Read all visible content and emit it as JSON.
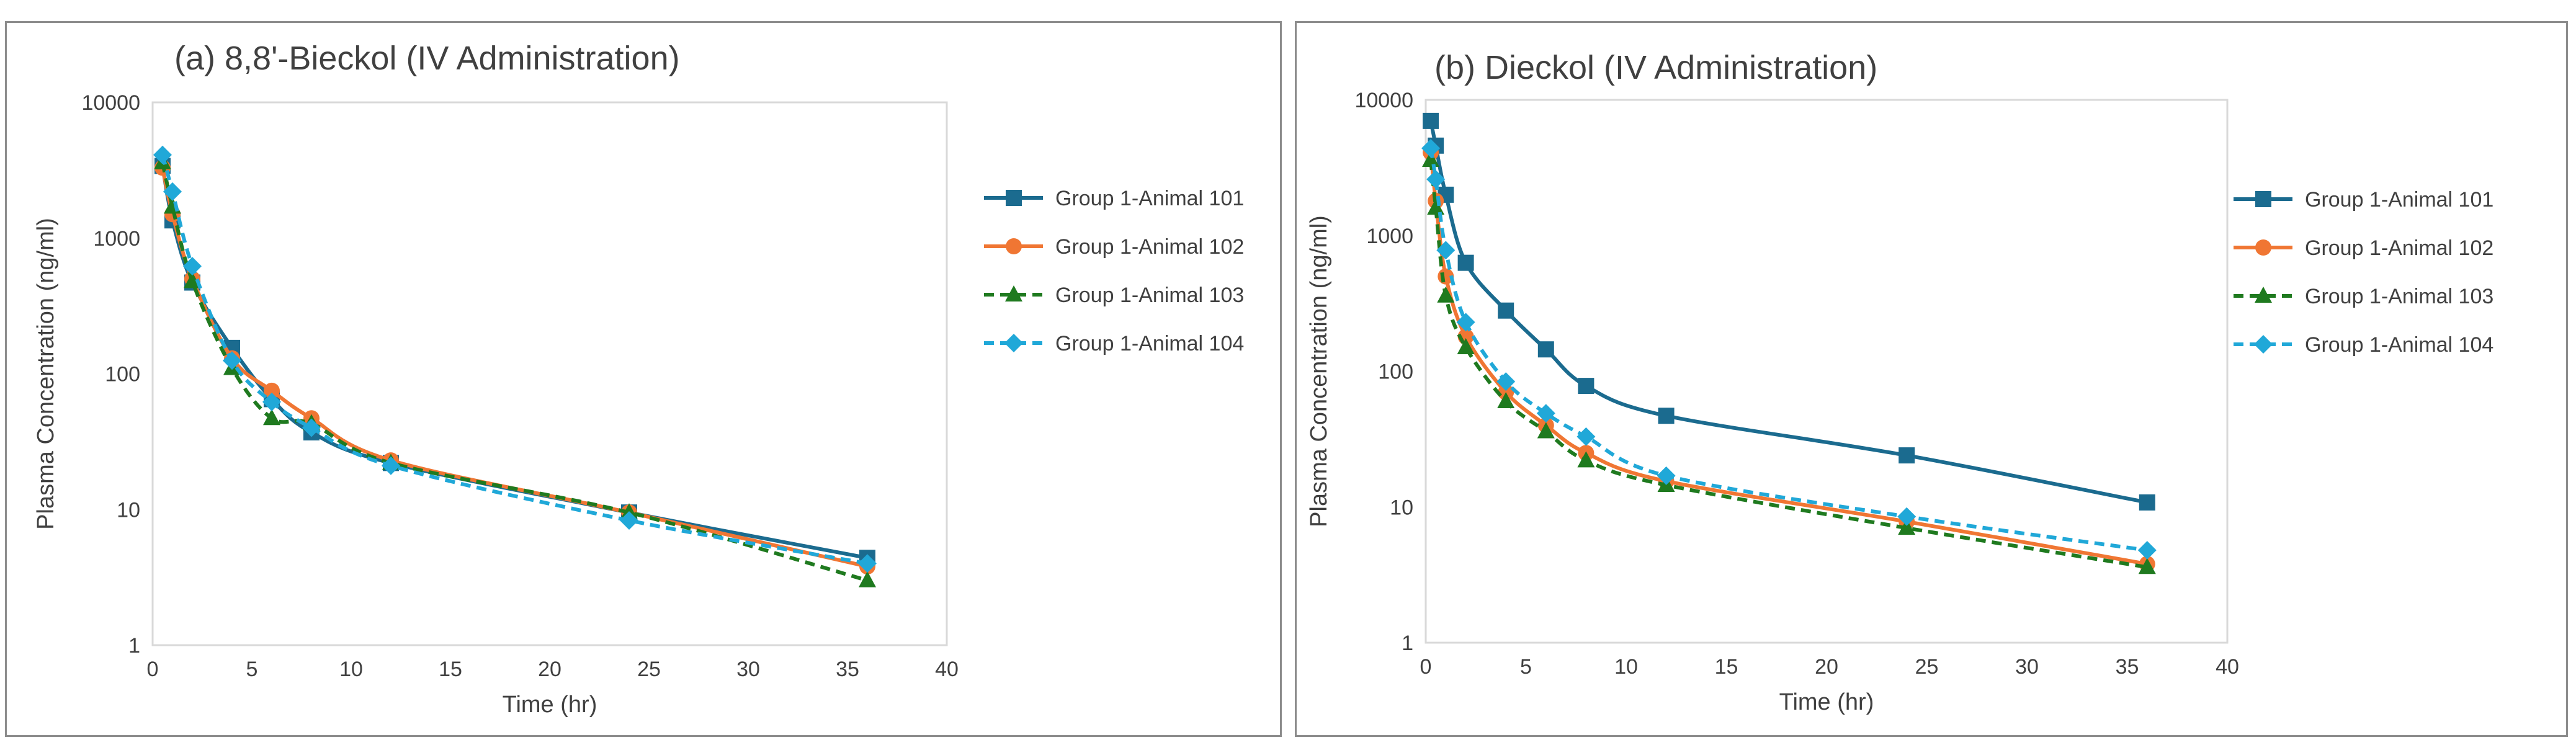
{
  "chart_data": [
    {
      "type": "line",
      "title": "(a) 8,8'-Bieckol (IV Administration)",
      "xlabel": "Time (hr)",
      "ylabel": "Plasma Concentration (ng/ml)",
      "xlim": [
        0,
        40
      ],
      "ylim": [
        1,
        10000
      ],
      "yscale": "log",
      "xticks": [
        "0",
        "5",
        "10",
        "15",
        "20",
        "25",
        "30",
        "35",
        "40"
      ],
      "yticks": [
        "1",
        "10",
        "100",
        "1000",
        "10000"
      ],
      "x": [
        0.5,
        1,
        2,
        4,
        6,
        8,
        12,
        24,
        36
      ],
      "legend_position": "right",
      "series": [
        {
          "name": "Group 1-Animal 101",
          "color": "#1b6b8f",
          "marker": "square",
          "dash": "solid",
          "values": [
            3400,
            1350,
            470,
            155,
            65,
            37,
            22,
            9.5,
            4.4
          ]
        },
        {
          "name": "Group 1-Animal 102",
          "color": "#f07633",
          "marker": "circle",
          "dash": "solid",
          "values": [
            3300,
            1500,
            500,
            130,
            75,
            47,
            23,
            9.5,
            3.8
          ]
        },
        {
          "name": "Group 1-Animal 103",
          "color": "#1f7a1f",
          "marker": "triangle",
          "dash": "dashed",
          "values": [
            3600,
            1700,
            480,
            110,
            47,
            43,
            22,
            9.5,
            3.0
          ]
        },
        {
          "name": "Group 1-Animal 104",
          "color": "#20a8d8",
          "marker": "diamond",
          "dash": "dashed",
          "values": [
            4100,
            2200,
            620,
            125,
            62,
            40,
            21,
            8.3,
            4.0
          ]
        }
      ]
    },
    {
      "type": "line",
      "title": "(b) Dieckol (IV Administration)",
      "xlabel": "Time (hr)",
      "ylabel": "Plasma Concentration (ng/ml)",
      "xlim": [
        0,
        40
      ],
      "ylim": [
        1,
        10000
      ],
      "yscale": "log",
      "xticks": [
        "0",
        "5",
        "10",
        "15",
        "20",
        "25",
        "30",
        "35",
        "40"
      ],
      "yticks": [
        "1",
        "10",
        "100",
        "1000",
        "10000"
      ],
      "x": [
        0.25,
        0.5,
        1,
        2,
        4,
        6,
        8,
        12,
        24,
        36
      ],
      "legend_position": "right",
      "series": [
        {
          "name": "Group 1-Animal 101",
          "color": "#1b6b8f",
          "marker": "square",
          "dash": "solid",
          "values": [
            7000,
            4600,
            2000,
            630,
            280,
            145,
            78,
            47,
            24,
            10.8
          ]
        },
        {
          "name": "Group 1-Animal 102",
          "color": "#f07633",
          "marker": "circle",
          "dash": "solid",
          "values": [
            4100,
            1800,
            500,
            180,
            70,
            40,
            25,
            15.5,
            7.8,
            3.8
          ]
        },
        {
          "name": "Group 1-Animal 103",
          "color": "#1f7a1f",
          "marker": "triangle",
          "dash": "dashed",
          "values": [
            3600,
            1600,
            360,
            150,
            60,
            36,
            22,
            14.5,
            7.0,
            3.6
          ]
        },
        {
          "name": "Group 1-Animal 104",
          "color": "#20a8d8",
          "marker": "diamond",
          "dash": "dashed",
          "values": [
            4400,
            2600,
            780,
            230,
            84,
            49,
            33,
            17,
            8.5,
            4.8
          ]
        }
      ]
    }
  ]
}
